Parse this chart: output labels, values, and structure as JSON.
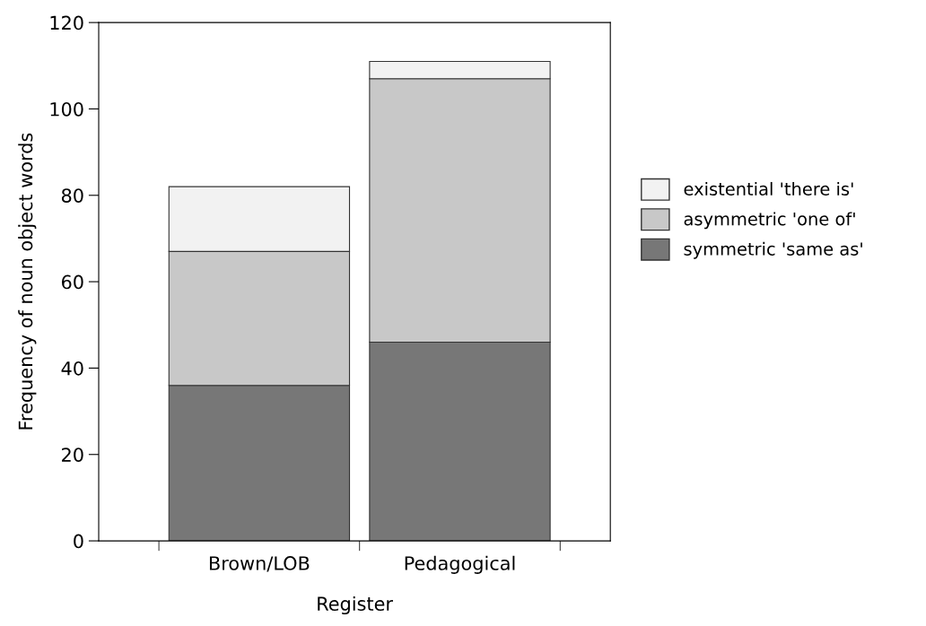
{
  "chart_data": {
    "type": "bar",
    "stacked": true,
    "xlabel": "Register",
    "ylabel": "Frequency of noun object words",
    "categories": [
      "Brown/LOB",
      "Pedagogical"
    ],
    "series": [
      {
        "name": "symmetric 'same as'",
        "color": "#777777",
        "values": [
          36,
          46
        ]
      },
      {
        "name": "asymmetric 'one of'",
        "color": "#c8c8c8",
        "values": [
          31,
          61
        ]
      },
      {
        "name": "existential 'there is'",
        "color": "#f2f2f2",
        "values": [
          15,
          4
        ]
      }
    ],
    "ylim": [
      0,
      120
    ],
    "yticks": [
      0,
      20,
      40,
      60,
      80,
      100,
      120
    ],
    "grid": false,
    "legend": "right"
  }
}
